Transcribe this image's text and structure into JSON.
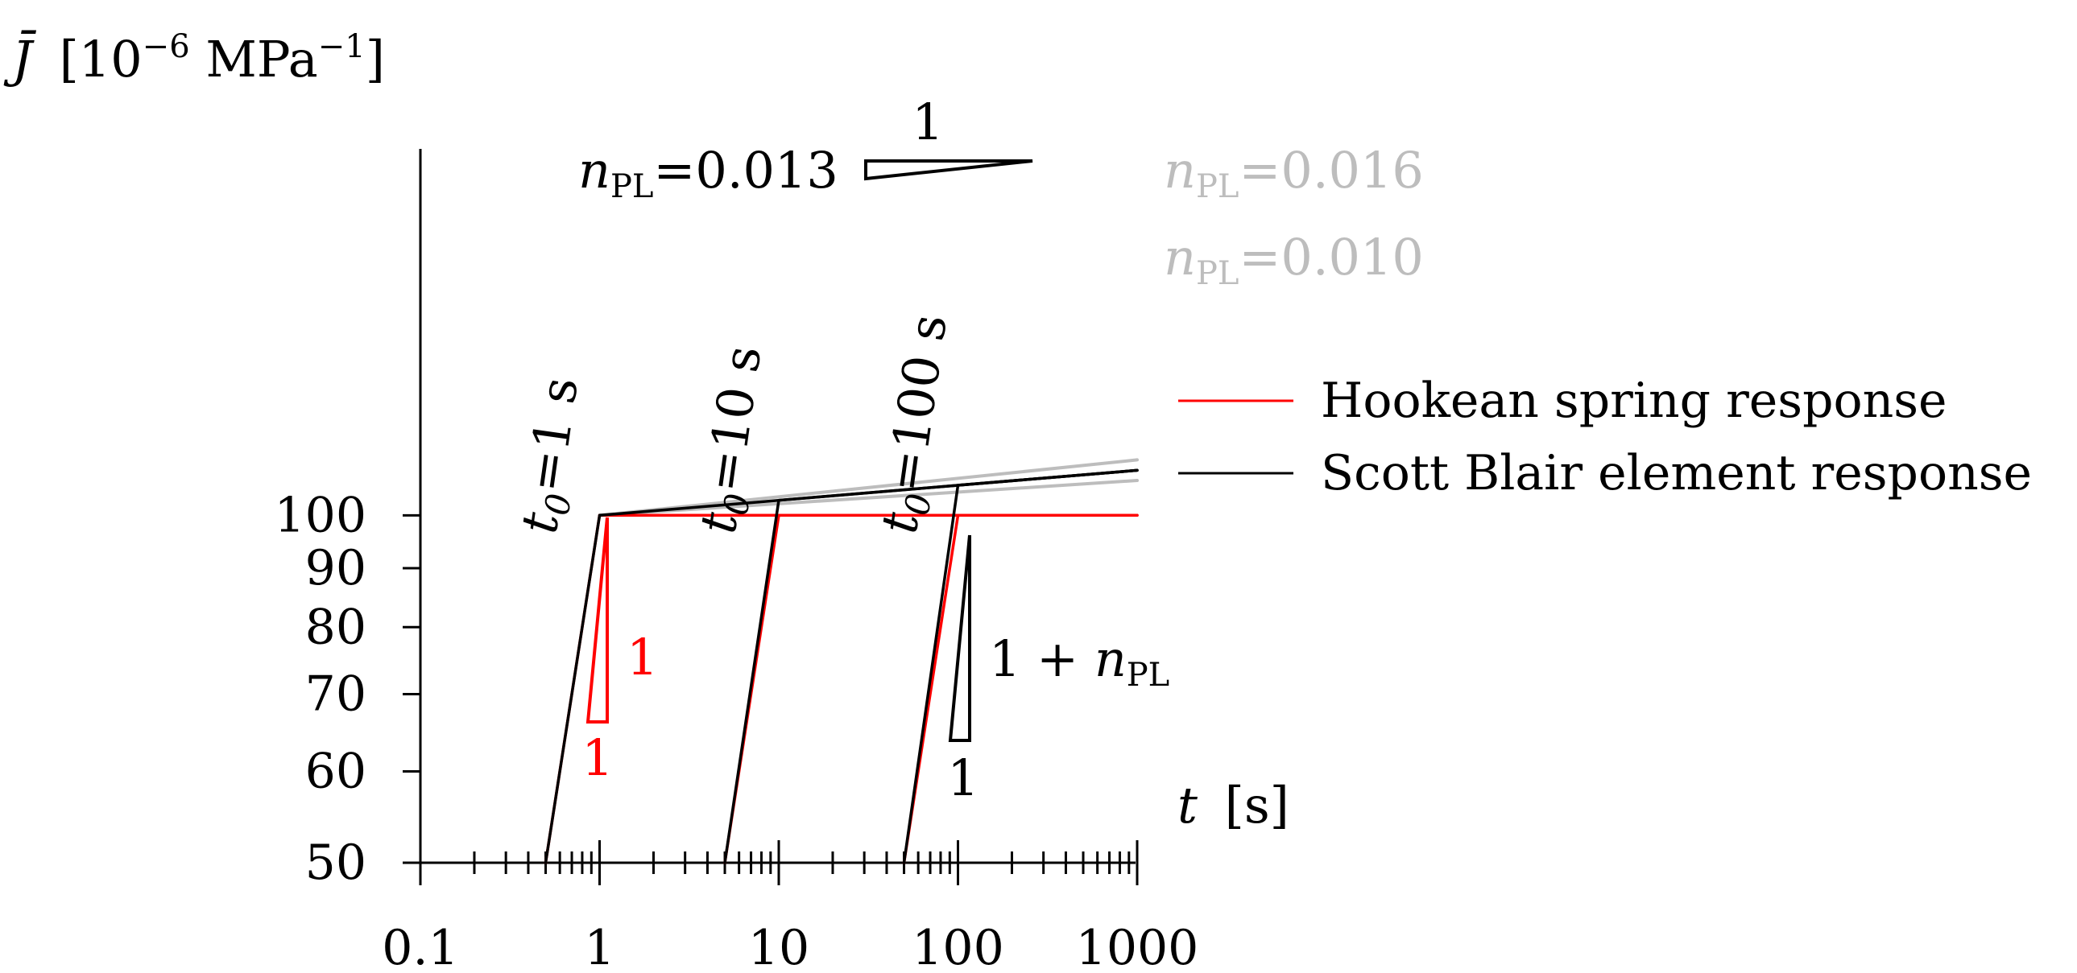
{
  "chart_data": {
    "type": "line",
    "y_axis_label": {
      "symbol": "J̄",
      "unit_open": "[10",
      "exp1": "−6",
      "unit_mid": " MPa",
      "exp2": "−1",
      "unit_close": "]"
    },
    "x_axis_label": {
      "symbol": "t",
      "unit": "[s]"
    },
    "x_scale": "log",
    "y_scale": "log",
    "xlim": [
      0.1,
      1000
    ],
    "ylim": [
      50,
      130
    ],
    "x_ticks": [
      0.1,
      1,
      10,
      100,
      1000
    ],
    "x_tick_labels": [
      "0.1",
      "1",
      "10",
      "100",
      "1000"
    ],
    "y_ticks": [
      50,
      60,
      70,
      80,
      90,
      100
    ],
    "y_tick_labels": [
      "50",
      "60",
      "70",
      "80",
      "90",
      "100"
    ],
    "grid": false,
    "legend_placement": "right",
    "legend": [
      {
        "label": "Hookean spring response",
        "color": "#ff0000"
      },
      {
        "label": "Scott Blair element response",
        "color": "#000000"
      }
    ],
    "series": [
      {
        "name": "Hookean spring response",
        "color": "#ff0000",
        "x": [
          0.5,
          1,
          1000
        ],
        "y": [
          50,
          100,
          100
        ]
      },
      {
        "name": "Hookean spring response",
        "color": "#ff0000",
        "x": [
          5,
          10,
          1000
        ],
        "y": [
          50,
          100,
          100
        ]
      },
      {
        "name": "Hookean spring response",
        "color": "#ff0000",
        "x": [
          50,
          100,
          1000
        ],
        "y": [
          50,
          100,
          100
        ]
      },
      {
        "name": "Scott Blair element response",
        "color": "#000000",
        "x": [
          0.5,
          1,
          1000
        ],
        "y": [
          50,
          100,
          109.4
        ]
      },
      {
        "name": "Scott Blair element response",
        "color": "#000000",
        "x": [
          5,
          10,
          1000
        ],
        "y": [
          50,
          103.05,
          109.4
        ]
      },
      {
        "name": "Scott Blair element response",
        "color": "#000000",
        "x": [
          50,
          100,
          1000
        ],
        "y": [
          50,
          106.2,
          109.4
        ]
      },
      {
        "name": "n_PL=0.016",
        "color": "#bdbdbd",
        "x": [
          1,
          1000
        ],
        "y": [
          100,
          111.7
        ]
      },
      {
        "name": "n_PL=0.010",
        "color": "#bdbdbd",
        "x": [
          1,
          1000
        ],
        "y": [
          100,
          107.2
        ]
      }
    ],
    "curve_labels": [
      {
        "text": "n",
        "sub": "PL",
        "value": "=0.016",
        "color": "#bdbdbd"
      },
      {
        "text": "n",
        "sub": "PL",
        "value": "=0.010",
        "color": "#bdbdbd"
      },
      {
        "text": "n",
        "sub": "PL",
        "value": "=0.013",
        "color": "#000000"
      }
    ],
    "annotations": {
      "t0_1": {
        "var": "t",
        "sub": "0",
        "value": "=1 s"
      },
      "t0_10": {
        "var": "t",
        "sub": "0",
        "value": "=10 s"
      },
      "t0_100": {
        "var": "t",
        "sub": "0",
        "value": "=100 s"
      },
      "slope_top_label": "1",
      "red_slope_vertical": "1",
      "red_slope_horizontal": "1",
      "black_slope_vertical_prefix": "1 + ",
      "black_slope_vertical_var": "n",
      "black_slope_vertical_sub": "PL",
      "black_slope_horizontal": "1"
    }
  }
}
